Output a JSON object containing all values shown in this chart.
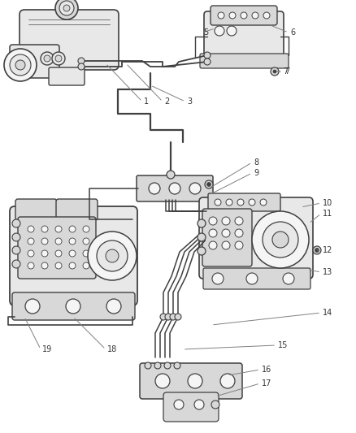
{
  "background_color": "#ffffff",
  "line_color": "#404040",
  "thin_color": "#606060",
  "label_color": "#333333",
  "leader_color": "#808080",
  "fill_light": "#f5f5f5",
  "fill_mid": "#e8e8e8",
  "fill_dark": "#d8d8d8",
  "figsize": [
    4.38,
    5.33
  ],
  "dpi": 100,
  "labels": [
    "1",
    "2",
    "3",
    "5",
    "6",
    "7",
    "8",
    "9",
    "10",
    "11",
    "12",
    "13",
    "14",
    "15",
    "16",
    "17",
    "18",
    "19"
  ]
}
